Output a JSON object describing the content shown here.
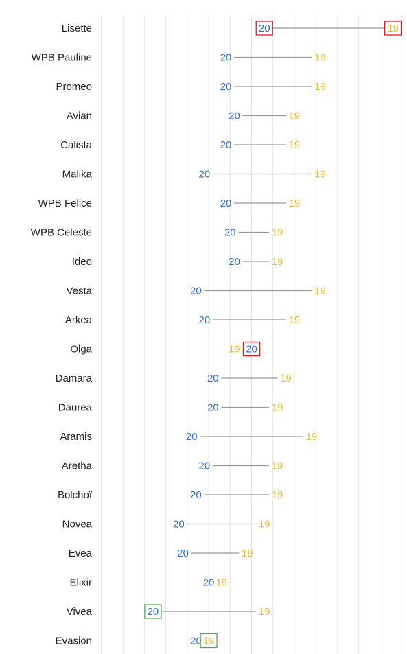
{
  "chart_data": {
    "type": "dumbbell",
    "categories": [
      "Lisette",
      "WPB Pauline",
      "Promeo",
      "Avian",
      "Calista",
      "Malika",
      "WPB Felice",
      "WPB Celeste",
      "Ideo",
      "Vesta",
      "Arkea",
      "Olga",
      "Damara",
      "Daurea",
      "Aramis",
      "Aretha",
      "Bolchoï",
      "Novea",
      "Evea",
      "Elixir",
      "Vivea",
      "Evasion"
    ],
    "series": [
      {
        "name": "",
        "marker_label": "20",
        "color": "#2f6fd8",
        "values": [
          93,
          84,
          84,
          86,
          84,
          79,
          84,
          85,
          86,
          77,
          79,
          90,
          81,
          81,
          76,
          79,
          77,
          73,
          74,
          80,
          67,
          77
        ]
      },
      {
        "name": "",
        "marker_label": "19",
        "color": "#f2be2e",
        "values": [
          123,
          106,
          106,
          100,
          100,
          106,
          100,
          96,
          96,
          106,
          100,
          86,
          98,
          96,
          104,
          96,
          96,
          93,
          89,
          83,
          93,
          80
        ]
      }
    ],
    "highlights": [
      {
        "category": "Lisette",
        "series": 0,
        "color": "#e31a1c"
      },
      {
        "category": "Lisette",
        "series": 1,
        "color": "#e31a1c"
      },
      {
        "category": "Olga",
        "series": 0,
        "color": "#e31a1c"
      },
      {
        "category": "Vivea",
        "series": 0,
        "color": "#4caf50"
      },
      {
        "category": "Evasion",
        "series": 1,
        "color": "#4caf50"
      }
    ],
    "xlim": [
      55,
      125
    ],
    "x_gridline_step": 5,
    "grid": true,
    "connector_color": "#999999"
  }
}
